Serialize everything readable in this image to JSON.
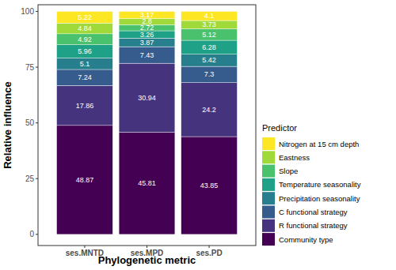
{
  "chart_data": {
    "type": "bar",
    "stacked": true,
    "data_labels": true,
    "grid": false,
    "legend": "right",
    "legend_title": "Predictor",
    "x_label": "Phylogenetic metric",
    "y_label": "Relative influence",
    "categories": [
      "ses.MNTD",
      "ses.MPD",
      "ses.PD"
    ],
    "ylim": [
      -5,
      103
    ],
    "yticks": [
      0,
      25,
      50,
      75,
      100
    ],
    "series": [
      {
        "name": "Community type",
        "color": "#440154",
        "values": [
          48.87,
          45.81,
          43.85
        ]
      },
      {
        "name": "R functional strategy",
        "color": "#46337E",
        "values": [
          17.86,
          30.94,
          24.2
        ]
      },
      {
        "name": "C functional strategy",
        "color": "#365C8D",
        "values": [
          7.24,
          7.43,
          7.3
        ]
      },
      {
        "name": "Precipitation seasonality",
        "color": "#277F8E",
        "values": [
          5.1,
          3.87,
          5.42
        ]
      },
      {
        "name": "Temperature seasonality",
        "color": "#1FA187",
        "values": [
          5.96,
          3.26,
          6.28
        ]
      },
      {
        "name": "Slope",
        "color": "#4AC16D",
        "values": [
          4.92,
          2.72,
          5.12
        ]
      },
      {
        "name": "Eastness",
        "color": "#9FDA3A",
        "values": [
          4.84,
          2.8,
          3.73
        ]
      },
      {
        "name": "Nitrogen at 15 cm depth",
        "color": "#FDE725",
        "values": [
          5.22,
          3.17,
          4.1
        ]
      }
    ]
  }
}
